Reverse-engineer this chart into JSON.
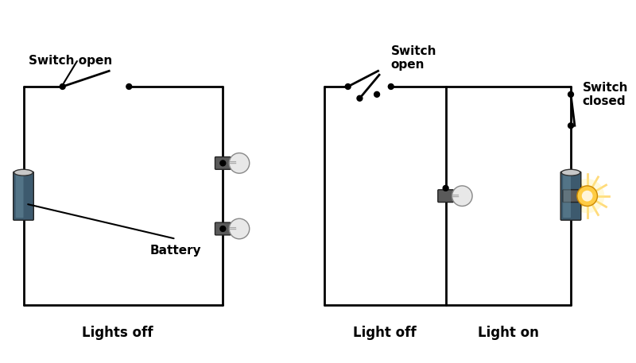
{
  "bg_color": "#ffffff",
  "wire_color": "#000000",
  "wire_lw": 2.0,
  "battery_color_dark": "#3d5a6e",
  "battery_color_light": "#6a8fa0",
  "battery_top": "#c8c8c8",
  "socket_color": "#5a5a5a",
  "bulb_glass": "#e8e8e8",
  "bulb_on_color": "#ffa500",
  "bulb_glow_color": "#ffcc44",
  "dot_color": "#000000",
  "text_color": "#000000",
  "label_fontsize": 11,
  "title_fontsize": 12,
  "switch_open_label": "Switch open",
  "switch_closed_label": "Switch\nclosed",
  "switch_open2_label": "Switch\nopen",
  "battery_label": "Battery",
  "lights_off_label": "Lights off",
  "light_off_label": "Light off",
  "light_on_label": "Light on"
}
